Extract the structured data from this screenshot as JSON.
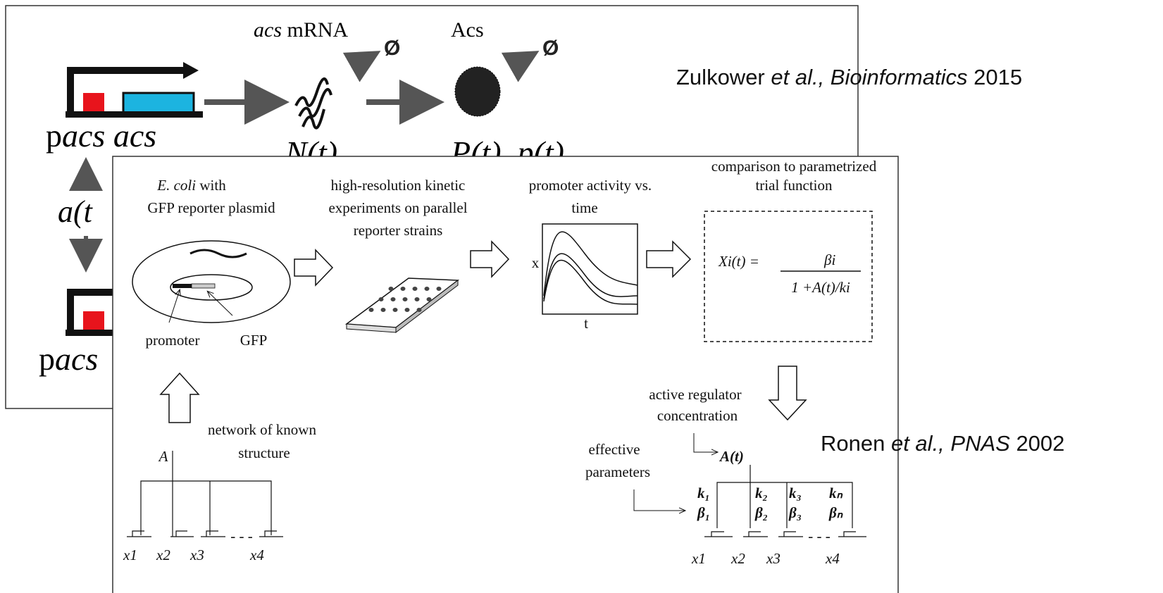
{
  "back_figure": {
    "mrna_label": {
      "italic": "acs",
      "plain": " mRNA"
    },
    "protein_label": "Acs",
    "degradation": [
      "Ø",
      "Ø"
    ],
    "gene_label": {
      "plain": "p",
      "italic": "acs acs"
    },
    "mrna_variable": "N(t)",
    "protein_variable": "P(t), p(t)",
    "activity_variable": "a(t",
    "gene_label_lower": {
      "plain": "p",
      "italic": "acs"
    }
  },
  "citations": [
    {
      "author": "Zulkower ",
      "italic": "et al., Bioinformatics",
      "year": " 2015"
    },
    {
      "author": "Ronen ",
      "italic": "et al., PNAS",
      "year": " 2002"
    }
  ],
  "front_figure": {
    "step1": {
      "italic": "E. coli",
      "plain": " with",
      "line2": "GFP reporter plasmid"
    },
    "step2": [
      "high-resolution kinetic",
      "experiments on parallel",
      "reporter strains"
    ],
    "step3": [
      "promoter activity vs.",
      "time"
    ],
    "step4": [
      "comparison to parametrized",
      "trial function"
    ],
    "plasmid_labels": [
      "promoter",
      "GFP"
    ],
    "plot_axes": {
      "y": "x",
      "x": "t"
    },
    "formula": {
      "lhs": "Xi(t) =",
      "numerator": "βi",
      "denominator": "1 +A(t)/ki"
    },
    "regulator_label": [
      "active regulator",
      "concentration"
    ],
    "network_label": [
      "network of known",
      "structure"
    ],
    "left_network": {
      "regulator": "A",
      "genes": [
        "x1",
        "x2",
        "x3",
        "x4"
      ],
      "ellipsis": "- - -"
    },
    "parameters_label": [
      "effective",
      "parameters"
    ],
    "right_network": {
      "regulator": "A(t)",
      "params": [
        [
          "k₁",
          "β₁"
        ],
        [
          "k₂",
          "β₂"
        ],
        [
          "k₃",
          "β₃"
        ],
        [
          "kₙ",
          "βₙ"
        ]
      ],
      "genes": [
        "x1",
        "x2",
        "x3",
        "x4"
      ],
      "ellipsis": "- - -"
    }
  }
}
